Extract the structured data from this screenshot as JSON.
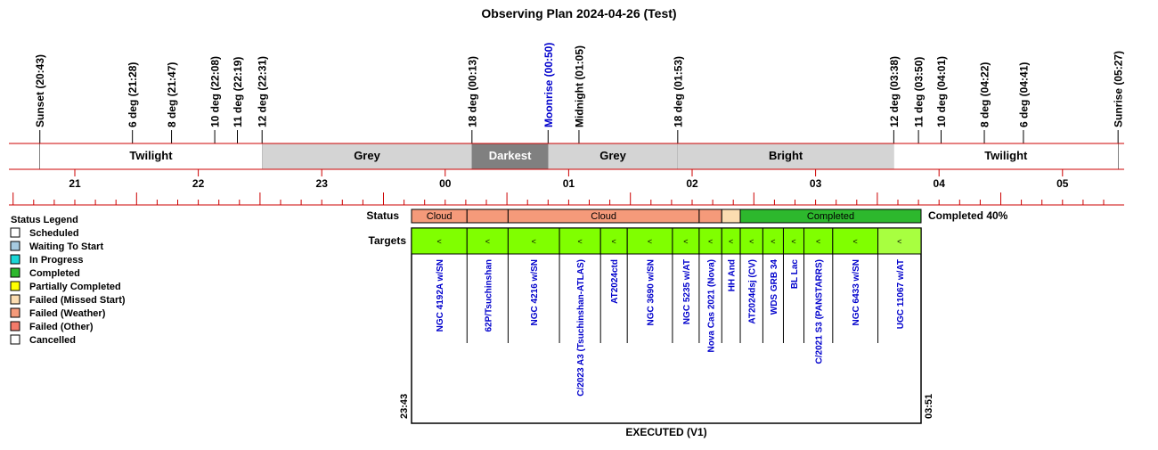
{
  "title": "Observing Plan 2024-04-26 (Test)",
  "events": [
    {
      "label": "Sunset (20:43)",
      "time": "20:43",
      "color": "#000000"
    },
    {
      "label": "6 deg (21:28)",
      "time": "21:28",
      "color": "#000000"
    },
    {
      "label": "8 deg (21:47)",
      "time": "21:47",
      "color": "#000000"
    },
    {
      "label": "10 deg (22:08)",
      "time": "22:08",
      "color": "#000000"
    },
    {
      "label": "11 deg (22:19)",
      "time": "22:19",
      "color": "#000000"
    },
    {
      "label": "12 deg (22:31)",
      "time": "22:31",
      "color": "#000000"
    },
    {
      "label": "18 deg (00:13)",
      "time": "00:13",
      "color": "#000000"
    },
    {
      "label": "Moonrise (00:50)",
      "time": "00:50",
      "color": "#0000cc"
    },
    {
      "label": "Midnight (01:05)",
      "time": "01:05",
      "color": "#000000"
    },
    {
      "label": "18 deg (01:53)",
      "time": "01:53",
      "color": "#000000"
    },
    {
      "label": "12 deg (03:38)",
      "time": "03:38",
      "color": "#000000"
    },
    {
      "label": "11 deg (03:50)",
      "time": "03:50",
      "color": "#000000"
    },
    {
      "label": "10 deg (04:01)",
      "time": "04:01",
      "color": "#000000"
    },
    {
      "label": "8 deg (04:22)",
      "time": "04:22",
      "color": "#000000"
    },
    {
      "label": "6 deg (04:41)",
      "time": "04:41",
      "color": "#000000"
    },
    {
      "label": "Sunrise (05:27)",
      "time": "05:27",
      "color": "#000000"
    }
  ],
  "sky_bands": [
    {
      "label": "Twilight",
      "start": "20:43",
      "end": "22:31",
      "fill": "#ffffff",
      "text_color": "#000000"
    },
    {
      "label": "Grey",
      "start": "22:31",
      "end": "00:13",
      "fill": "#d4d4d4",
      "text_color": "#000000"
    },
    {
      "label": "Darkest",
      "start": "00:13",
      "end": "00:50",
      "fill": "#808080",
      "text_color": "#ffffff"
    },
    {
      "label": "Grey",
      "start": "00:50",
      "end": "01:53",
      "fill": "#d4d4d4",
      "text_color": "#000000"
    },
    {
      "label": "Bright",
      "start": "01:53",
      "end": "03:38",
      "fill": "#d4d4d4",
      "text_color": "#000000"
    },
    {
      "label": "Twilight",
      "start": "03:38",
      "end": "05:27",
      "fill": "#ffffff",
      "text_color": "#000000"
    }
  ],
  "hour_ticks": [
    "21",
    "22",
    "23",
    "00",
    "01",
    "02",
    "03",
    "04",
    "05"
  ],
  "legend": {
    "title": "Status Legend",
    "items": [
      {
        "label": "Scheduled",
        "color": "#ffffff"
      },
      {
        "label": "Waiting To Start",
        "color": "#a6cae0"
      },
      {
        "label": "In Progress",
        "color": "#1ad6d6"
      },
      {
        "label": "Completed",
        "color": "#2db82d"
      },
      {
        "label": "Partially Completed",
        "color": "#ffff00"
      },
      {
        "label": "Failed (Missed Start)",
        "color": "#fbdcb0"
      },
      {
        "label": "Failed (Weather)",
        "color": "#f59a7a"
      },
      {
        "label": "Failed (Other)",
        "color": "#f37a6a"
      },
      {
        "label": "Cancelled",
        "color": "#ffffff"
      }
    ]
  },
  "status_label": "Status",
  "targets_label": "Targets",
  "completed_summary": "Completed 40%",
  "plan_start": "23:43",
  "plan_end": "03:51",
  "footer": "EXECUTED (V1)",
  "status_segments": [
    {
      "label": "Cloud",
      "start": "23:43",
      "end": "00:10",
      "color": "#f59a7a"
    },
    {
      "label": "",
      "start": "00:10",
      "end": "00:30",
      "color": "#f59a7a"
    },
    {
      "label": "Cloud",
      "start": "00:30",
      "end": "02:03",
      "color": "#f59a7a"
    },
    {
      "label": "",
      "start": "02:03",
      "end": "02:14",
      "color": "#f59a7a"
    },
    {
      "label": "",
      "start": "02:14",
      "end": "02:23",
      "color": "#fbdcb0"
    },
    {
      "label": "Completed",
      "start": "02:23",
      "end": "03:51",
      "color": "#2db82d"
    }
  ],
  "targets": [
    {
      "name": "NGC 4192A w/SN",
      "start": "23:43",
      "end": "00:10",
      "marker": "<",
      "color": "#80ff00"
    },
    {
      "name": "62P/Tsuchinshan",
      "start": "00:10",
      "end": "00:30",
      "marker": "<",
      "color": "#80ff00"
    },
    {
      "name": "NGC 4216 w/SN",
      "start": "00:30",
      "end": "00:55",
      "marker": "<",
      "color": "#80ff00"
    },
    {
      "name": "C/2023 A3 (Tsuchinshan-ATLAS)",
      "start": "00:55",
      "end": "01:15",
      "marker": "<",
      "color": "#80ff00"
    },
    {
      "name": "AT2024ctd",
      "start": "01:15",
      "end": "01:28",
      "marker": "<",
      "color": "#80ff00"
    },
    {
      "name": "NGC 3690 w/SN",
      "start": "01:28",
      "end": "01:50",
      "marker": "<",
      "color": "#80ff00"
    },
    {
      "name": "NGC 5235 w/AT",
      "start": "01:50",
      "end": "02:03",
      "marker": "<",
      "color": "#80ff00"
    },
    {
      "name": "Nova Cas 2021 (Nova)",
      "start": "02:03",
      "end": "02:14",
      "marker": "<",
      "color": "#80ff00"
    },
    {
      "name": "HH And",
      "start": "02:14",
      "end": "02:23",
      "marker": "<",
      "color": "#80ff00"
    },
    {
      "name": "AT2024dsj (CV)",
      "start": "02:23",
      "end": "02:34",
      "marker": "<",
      "color": "#80ff00"
    },
    {
      "name": "WDS GRB 34",
      "start": "02:34",
      "end": "02:44",
      "marker": "<",
      "color": "#80ff00"
    },
    {
      "name": "BL Lac",
      "start": "02:44",
      "end": "02:54",
      "marker": "<",
      "color": "#80ff00"
    },
    {
      "name": "C/2021 S3 (PANSTARRS)",
      "start": "02:54",
      "end": "03:08",
      "marker": "<",
      "color": "#80ff00"
    },
    {
      "name": "NGC 6433 w/SN",
      "start": "03:08",
      "end": "03:30",
      "marker": "<",
      "color": "#80ff00"
    },
    {
      "name": "UGC 11067 w/AT",
      "start": "03:30",
      "end": "03:51",
      "marker": "<",
      "color": "#a8ff40"
    }
  ],
  "colors": {
    "axis_red": "#cc0000",
    "target_text": "#0000cc",
    "border": "#000000"
  }
}
